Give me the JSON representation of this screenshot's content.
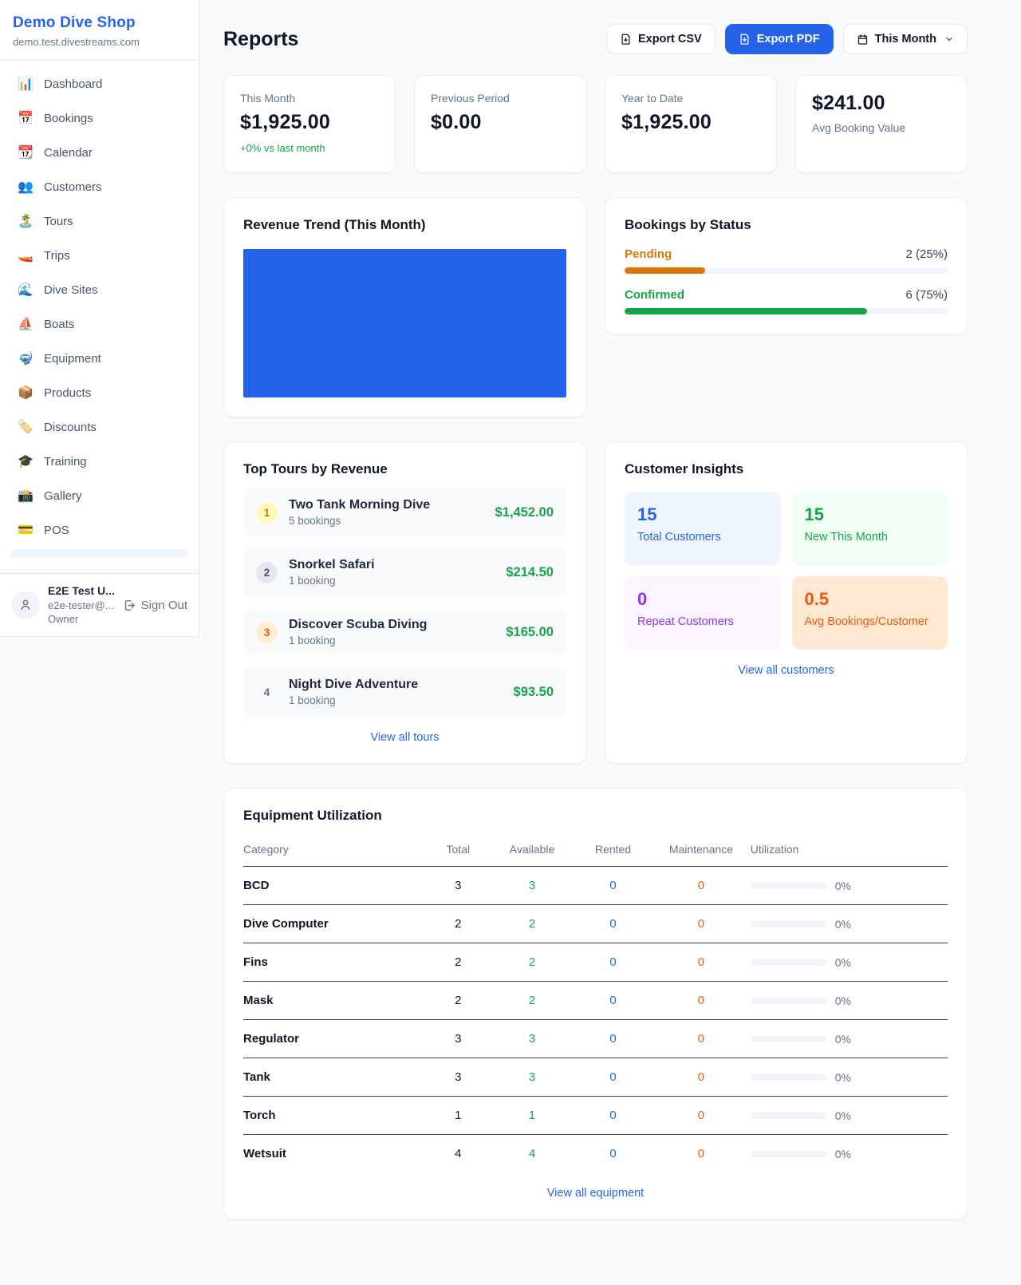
{
  "sidebar": {
    "brand": "Demo Dive Shop",
    "domain": "demo.test.divestreams.com",
    "items": [
      {
        "emoji": "📊",
        "label": "Dashboard"
      },
      {
        "emoji": "📅",
        "label": "Bookings"
      },
      {
        "emoji": "📆",
        "label": "Calendar"
      },
      {
        "emoji": "👥",
        "label": "Customers"
      },
      {
        "emoji": "🏝️",
        "label": "Tours"
      },
      {
        "emoji": "🚤",
        "label": "Trips"
      },
      {
        "emoji": "🌊",
        "label": "Dive Sites"
      },
      {
        "emoji": "⛵",
        "label": "Boats"
      },
      {
        "emoji": "🤿",
        "label": "Equipment"
      },
      {
        "emoji": "📦",
        "label": "Products"
      },
      {
        "emoji": "🏷️",
        "label": "Discounts"
      },
      {
        "emoji": "🎓",
        "label": "Training"
      },
      {
        "emoji": "📸",
        "label": "Gallery"
      },
      {
        "emoji": "💳",
        "label": "POS"
      }
    ],
    "user": {
      "name": "E2E Test U...",
      "email": "e2e-tester@...",
      "role": "Owner",
      "signout_label": "Sign Out"
    }
  },
  "header": {
    "title": "Reports",
    "export_csv_label": "Export CSV",
    "export_pdf_label": "Export PDF",
    "period_label": "This Month"
  },
  "stats": [
    {
      "label": "This Month",
      "value": "$1,925.00",
      "delta": "+0% vs last month"
    },
    {
      "label": "Previous Period",
      "value": "$0.00"
    },
    {
      "label": "Year to Date",
      "value": "$1,925.00"
    },
    {
      "label": "Avg Booking Value",
      "value": "$241.00"
    }
  ],
  "revenue_trend": {
    "title": "Revenue Trend (This Month)",
    "bar_color": "#2563eb",
    "note": "single full-width bar filling the chart area"
  },
  "bookings_by_status": {
    "title": "Bookings by Status",
    "rows": [
      {
        "label": "Pending",
        "count": "2 (25%)",
        "pct": 25,
        "color": "#d97706"
      },
      {
        "label": "Confirmed",
        "count": "6 (75%)",
        "pct": 75,
        "color": "#16a34a"
      }
    ]
  },
  "top_tours": {
    "title": "Top Tours by Revenue",
    "rows": [
      {
        "rank": "1",
        "name": "Two Tank Morning Dive",
        "bookings": "5 bookings",
        "revenue": "$1,452.00"
      },
      {
        "rank": "2",
        "name": "Snorkel Safari",
        "bookings": "1 booking",
        "revenue": "$214.50"
      },
      {
        "rank": "3",
        "name": "Discover Scuba Diving",
        "bookings": "1 booking",
        "revenue": "$165.00"
      },
      {
        "rank": "4",
        "name": "Night Dive Adventure",
        "bookings": "1 booking",
        "revenue": "$93.50"
      }
    ],
    "view_all": "View all tours"
  },
  "customer_insights": {
    "title": "Customer Insights",
    "tiles": [
      {
        "value": "15",
        "label": "Total Customers",
        "theme": "blue"
      },
      {
        "value": "15",
        "label": "New This Month",
        "theme": "green"
      },
      {
        "value": "0",
        "label": "Repeat Customers",
        "theme": "purple"
      },
      {
        "value": "0.5",
        "label": "Avg Bookings/Customer",
        "theme": "orange"
      }
    ],
    "view_all": "View all customers"
  },
  "equipment": {
    "title": "Equipment Utilization",
    "columns": [
      "Category",
      "Total",
      "Available",
      "Rented",
      "Maintenance",
      "Utilization"
    ],
    "rows": [
      {
        "category": "BCD",
        "total": "3",
        "available": "3",
        "rented": "0",
        "maintenance": "0",
        "utilization": "0%",
        "pct": 0
      },
      {
        "category": "Dive Computer",
        "total": "2",
        "available": "2",
        "rented": "0",
        "maintenance": "0",
        "utilization": "0%",
        "pct": 0
      },
      {
        "category": "Fins",
        "total": "2",
        "available": "2",
        "rented": "0",
        "maintenance": "0",
        "utilization": "0%",
        "pct": 0
      },
      {
        "category": "Mask",
        "total": "2",
        "available": "2",
        "rented": "0",
        "maintenance": "0",
        "utilization": "0%",
        "pct": 0
      },
      {
        "category": "Regulator",
        "total": "3",
        "available": "3",
        "rented": "0",
        "maintenance": "0",
        "utilization": "0%",
        "pct": 0
      },
      {
        "category": "Tank",
        "total": "3",
        "available": "3",
        "rented": "0",
        "maintenance": "0",
        "utilization": "0%",
        "pct": 0
      },
      {
        "category": "Torch",
        "total": "1",
        "available": "1",
        "rented": "0",
        "maintenance": "0",
        "utilization": "0%",
        "pct": 0
      },
      {
        "category": "Wetsuit",
        "total": "4",
        "available": "4",
        "rented": "0",
        "maintenance": "0",
        "utilization": "0%",
        "pct": 0
      }
    ],
    "view_all": "View all equipment"
  }
}
